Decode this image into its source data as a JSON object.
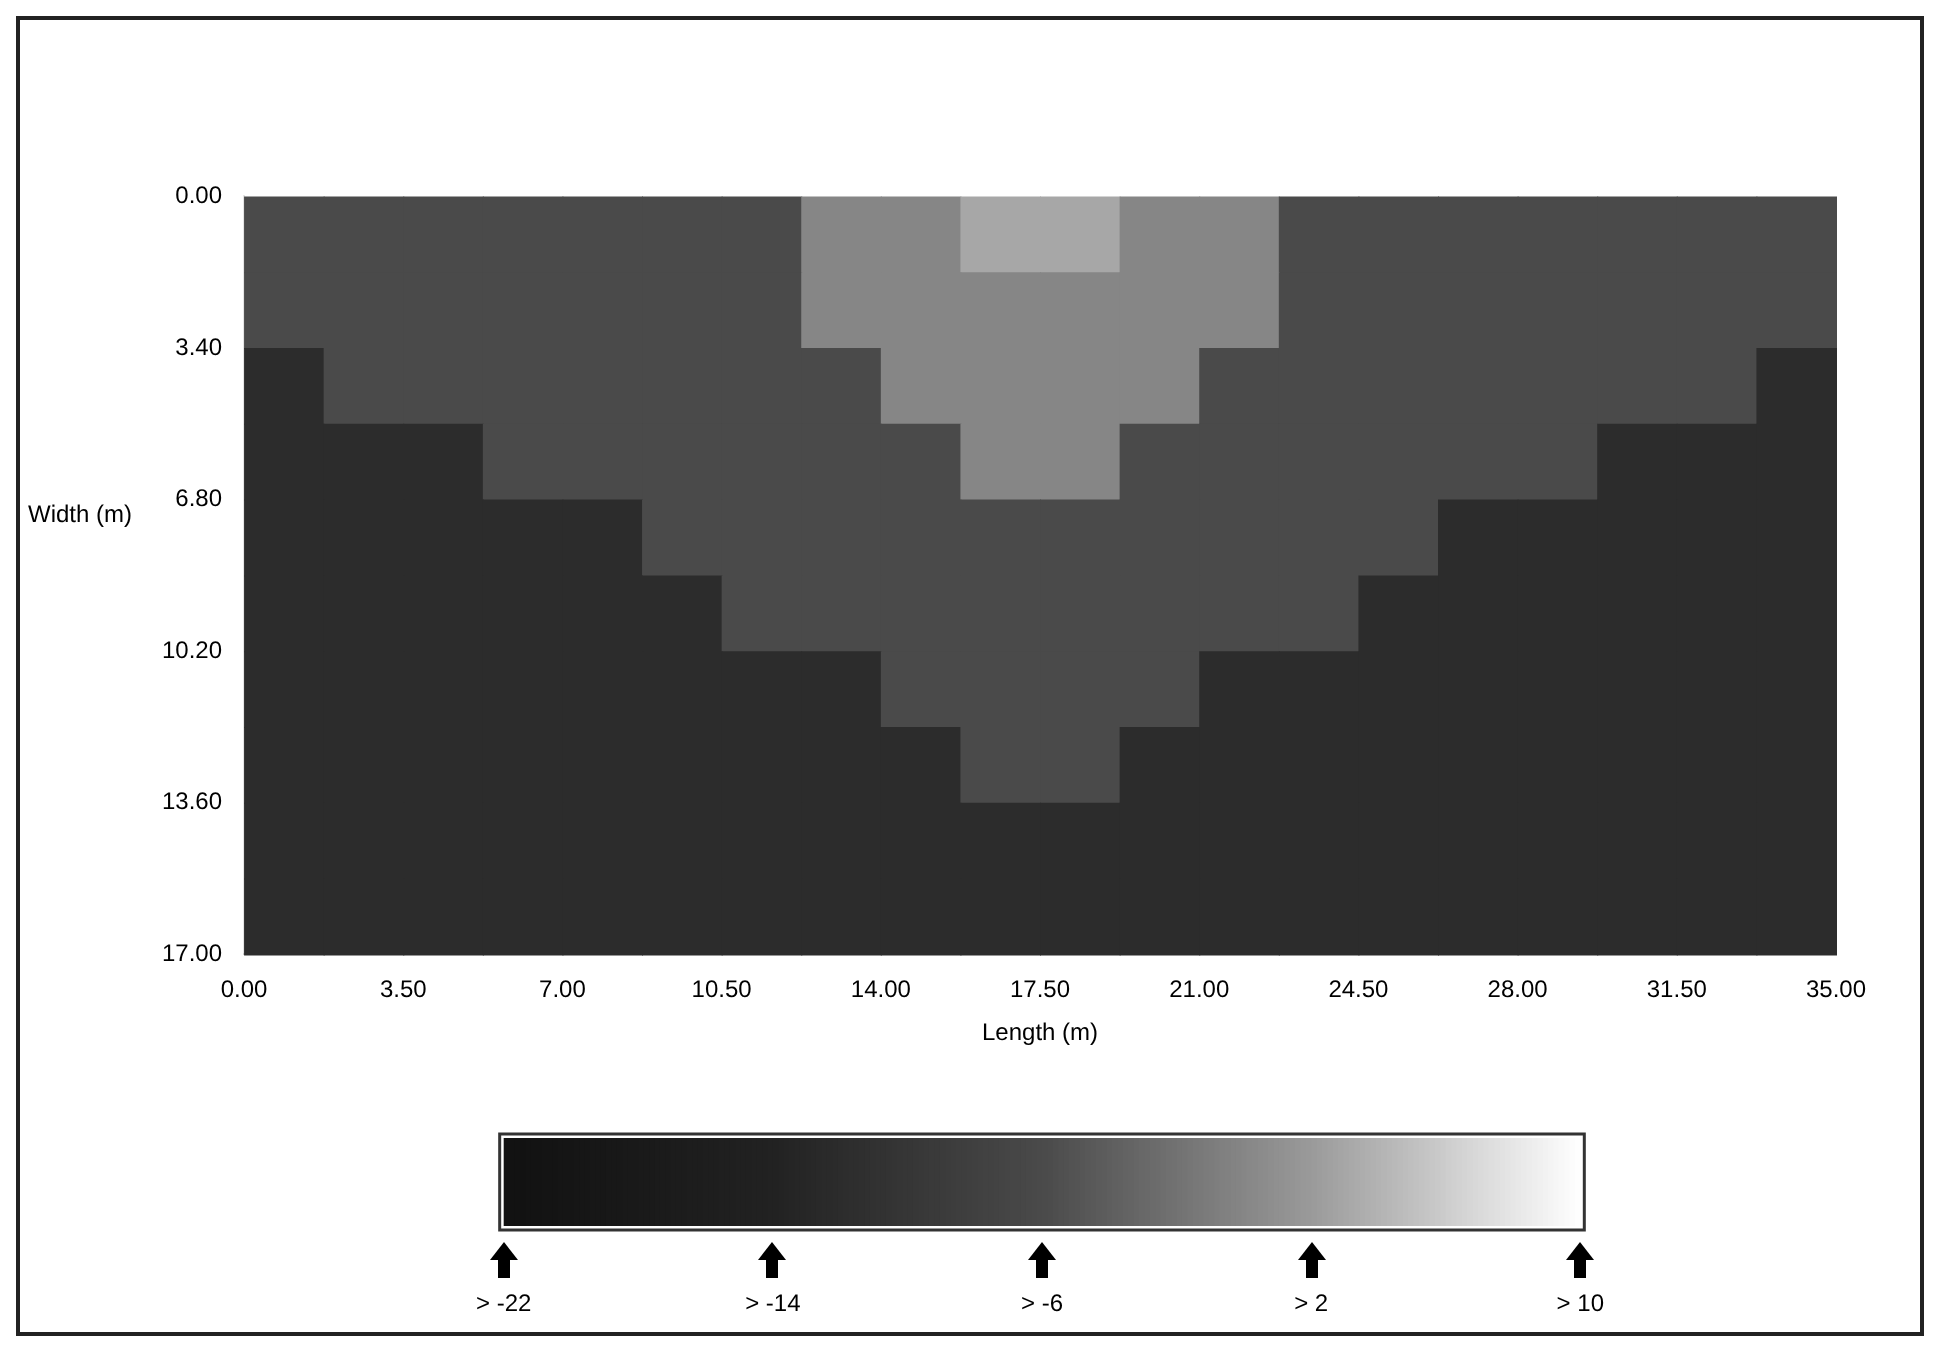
{
  "chart_data": {
    "type": "heatmap",
    "xlabel": "Length (m)",
    "ylabel": "Width (m)",
    "xlim": [
      0,
      35
    ],
    "ylim": [
      17,
      0
    ],
    "xticks": [
      {
        "value": 0,
        "label": "0.00"
      },
      {
        "value": 3.5,
        "label": "3.50"
      },
      {
        "value": 7,
        "label": "7.00"
      },
      {
        "value": 10.5,
        "label": "10.50"
      },
      {
        "value": 14,
        "label": "14.00"
      },
      {
        "value": 17.5,
        "label": "17.50"
      },
      {
        "value": 21,
        "label": "21.00"
      },
      {
        "value": 24.5,
        "label": "24.50"
      },
      {
        "value": 28,
        "label": "28.00"
      },
      {
        "value": 31.5,
        "label": "31.50"
      },
      {
        "value": 35,
        "label": "35.00"
      }
    ],
    "yticks": [
      {
        "value": 0,
        "label": "0.00"
      },
      {
        "value": 3.4,
        "label": "3.40"
      },
      {
        "value": 6.8,
        "label": "6.80"
      },
      {
        "value": 10.2,
        "label": "10.20"
      },
      {
        "value": 13.6,
        "label": "13.60"
      },
      {
        "value": 17,
        "label": "17.00"
      }
    ],
    "clim": [
      -22,
      10
    ],
    "cticks": [
      {
        "value": -22,
        "label": "> -22"
      },
      {
        "value": -14,
        "label": "> -14"
      },
      {
        "value": -6,
        "label": "> -6"
      },
      {
        "value": 2,
        "label": "> 2"
      },
      {
        "value": 10,
        "label": "> 10"
      }
    ],
    "cells": [
      [
        -6,
        -6,
        -6,
        -6,
        -6,
        -6,
        -6,
        0,
        0,
        3,
        3,
        0,
        0,
        -6,
        -6,
        -6,
        -6,
        -6,
        -6,
        -6
      ],
      [
        -6,
        -6,
        -6,
        -6,
        -6,
        -6,
        -6,
        0,
        0,
        0,
        0,
        0,
        0,
        -6,
        -6,
        -6,
        -6,
        -6,
        -6,
        -6
      ],
      [
        -12,
        -6,
        -6,
        -6,
        -6,
        -6,
        -6,
        -6,
        0,
        0,
        0,
        0,
        -6,
        -6,
        -6,
        -6,
        -6,
        -6,
        -6,
        -12
      ],
      [
        -12,
        -12,
        -12,
        -6,
        -6,
        -6,
        -6,
        -6,
        -6,
        0,
        0,
        -6,
        -6,
        -6,
        -6,
        -6,
        -6,
        -12,
        -12,
        -12
      ],
      [
        -12,
        -12,
        -12,
        -12,
        -12,
        -6,
        -6,
        -6,
        -6,
        -6,
        -6,
        -6,
        -6,
        -6,
        -6,
        -12,
        -12,
        -12,
        -12,
        -12
      ],
      [
        -12,
        -12,
        -12,
        -12,
        -12,
        -12,
        -6,
        -6,
        -6,
        -6,
        -6,
        -6,
        -6,
        -6,
        -12,
        -12,
        -12,
        -12,
        -12,
        -12
      ],
      [
        -12,
        -12,
        -12,
        -12,
        -12,
        -12,
        -12,
        -12,
        -6,
        -6,
        -6,
        -6,
        -12,
        -12,
        -12,
        -12,
        -12,
        -12,
        -12,
        -12
      ],
      [
        -12,
        -12,
        -12,
        -12,
        -12,
        -12,
        -12,
        -12,
        -12,
        -6,
        -6,
        -12,
        -12,
        -12,
        -12,
        -12,
        -12,
        -12,
        -12,
        -12
      ],
      [
        -12,
        -12,
        -12,
        -12,
        -12,
        -12,
        -12,
        -12,
        -12,
        -12,
        -12,
        -12,
        -12,
        -12,
        -12,
        -12,
        -12,
        -12,
        -12,
        -12
      ],
      [
        -12,
        -12,
        -12,
        -12,
        -12,
        -12,
        -12,
        -12,
        -12,
        -12,
        -12,
        -12,
        -12,
        -12,
        -12,
        -12,
        -12,
        -12,
        -12,
        -12
      ]
    ]
  }
}
